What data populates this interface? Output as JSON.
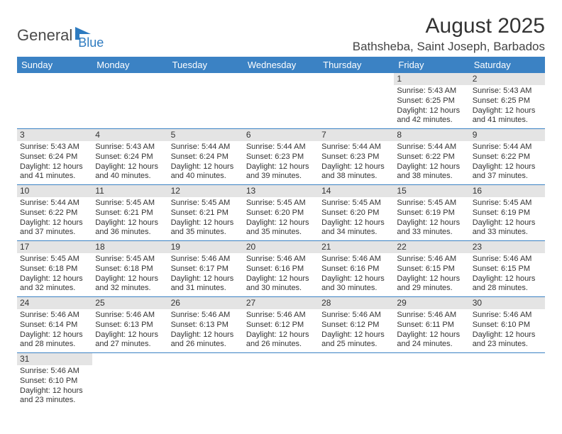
{
  "logo": {
    "textA": "General",
    "textB": "Blue"
  },
  "title": "August 2025",
  "location": "Bathsheba, Saint Joseph, Barbados",
  "colors": {
    "header_bg": "#3b82c4",
    "header_text": "#ffffff",
    "daynum_bg": "#e4e4e4",
    "border": "#3b82c4",
    "logo_gray": "#4a4a4a",
    "logo_blue": "#2e7bc0"
  },
  "weekdays": [
    "Sunday",
    "Monday",
    "Tuesday",
    "Wednesday",
    "Thursday",
    "Friday",
    "Saturday"
  ],
  "weeks": [
    [
      null,
      null,
      null,
      null,
      null,
      {
        "n": "1",
        "sr": "Sunrise: 5:43 AM",
        "ss": "Sunset: 6:25 PM",
        "d1": "Daylight: 12 hours",
        "d2": "and 42 minutes."
      },
      {
        "n": "2",
        "sr": "Sunrise: 5:43 AM",
        "ss": "Sunset: 6:25 PM",
        "d1": "Daylight: 12 hours",
        "d2": "and 41 minutes."
      }
    ],
    [
      {
        "n": "3",
        "sr": "Sunrise: 5:43 AM",
        "ss": "Sunset: 6:24 PM",
        "d1": "Daylight: 12 hours",
        "d2": "and 41 minutes."
      },
      {
        "n": "4",
        "sr": "Sunrise: 5:43 AM",
        "ss": "Sunset: 6:24 PM",
        "d1": "Daylight: 12 hours",
        "d2": "and 40 minutes."
      },
      {
        "n": "5",
        "sr": "Sunrise: 5:44 AM",
        "ss": "Sunset: 6:24 PM",
        "d1": "Daylight: 12 hours",
        "d2": "and 40 minutes."
      },
      {
        "n": "6",
        "sr": "Sunrise: 5:44 AM",
        "ss": "Sunset: 6:23 PM",
        "d1": "Daylight: 12 hours",
        "d2": "and 39 minutes."
      },
      {
        "n": "7",
        "sr": "Sunrise: 5:44 AM",
        "ss": "Sunset: 6:23 PM",
        "d1": "Daylight: 12 hours",
        "d2": "and 38 minutes."
      },
      {
        "n": "8",
        "sr": "Sunrise: 5:44 AM",
        "ss": "Sunset: 6:22 PM",
        "d1": "Daylight: 12 hours",
        "d2": "and 38 minutes."
      },
      {
        "n": "9",
        "sr": "Sunrise: 5:44 AM",
        "ss": "Sunset: 6:22 PM",
        "d1": "Daylight: 12 hours",
        "d2": "and 37 minutes."
      }
    ],
    [
      {
        "n": "10",
        "sr": "Sunrise: 5:44 AM",
        "ss": "Sunset: 6:22 PM",
        "d1": "Daylight: 12 hours",
        "d2": "and 37 minutes."
      },
      {
        "n": "11",
        "sr": "Sunrise: 5:45 AM",
        "ss": "Sunset: 6:21 PM",
        "d1": "Daylight: 12 hours",
        "d2": "and 36 minutes."
      },
      {
        "n": "12",
        "sr": "Sunrise: 5:45 AM",
        "ss": "Sunset: 6:21 PM",
        "d1": "Daylight: 12 hours",
        "d2": "and 35 minutes."
      },
      {
        "n": "13",
        "sr": "Sunrise: 5:45 AM",
        "ss": "Sunset: 6:20 PM",
        "d1": "Daylight: 12 hours",
        "d2": "and 35 minutes."
      },
      {
        "n": "14",
        "sr": "Sunrise: 5:45 AM",
        "ss": "Sunset: 6:20 PM",
        "d1": "Daylight: 12 hours",
        "d2": "and 34 minutes."
      },
      {
        "n": "15",
        "sr": "Sunrise: 5:45 AM",
        "ss": "Sunset: 6:19 PM",
        "d1": "Daylight: 12 hours",
        "d2": "and 33 minutes."
      },
      {
        "n": "16",
        "sr": "Sunrise: 5:45 AM",
        "ss": "Sunset: 6:19 PM",
        "d1": "Daylight: 12 hours",
        "d2": "and 33 minutes."
      }
    ],
    [
      {
        "n": "17",
        "sr": "Sunrise: 5:45 AM",
        "ss": "Sunset: 6:18 PM",
        "d1": "Daylight: 12 hours",
        "d2": "and 32 minutes."
      },
      {
        "n": "18",
        "sr": "Sunrise: 5:45 AM",
        "ss": "Sunset: 6:18 PM",
        "d1": "Daylight: 12 hours",
        "d2": "and 32 minutes."
      },
      {
        "n": "19",
        "sr": "Sunrise: 5:46 AM",
        "ss": "Sunset: 6:17 PM",
        "d1": "Daylight: 12 hours",
        "d2": "and 31 minutes."
      },
      {
        "n": "20",
        "sr": "Sunrise: 5:46 AM",
        "ss": "Sunset: 6:16 PM",
        "d1": "Daylight: 12 hours",
        "d2": "and 30 minutes."
      },
      {
        "n": "21",
        "sr": "Sunrise: 5:46 AM",
        "ss": "Sunset: 6:16 PM",
        "d1": "Daylight: 12 hours",
        "d2": "and 30 minutes."
      },
      {
        "n": "22",
        "sr": "Sunrise: 5:46 AM",
        "ss": "Sunset: 6:15 PM",
        "d1": "Daylight: 12 hours",
        "d2": "and 29 minutes."
      },
      {
        "n": "23",
        "sr": "Sunrise: 5:46 AM",
        "ss": "Sunset: 6:15 PM",
        "d1": "Daylight: 12 hours",
        "d2": "and 28 minutes."
      }
    ],
    [
      {
        "n": "24",
        "sr": "Sunrise: 5:46 AM",
        "ss": "Sunset: 6:14 PM",
        "d1": "Daylight: 12 hours",
        "d2": "and 28 minutes."
      },
      {
        "n": "25",
        "sr": "Sunrise: 5:46 AM",
        "ss": "Sunset: 6:13 PM",
        "d1": "Daylight: 12 hours",
        "d2": "and 27 minutes."
      },
      {
        "n": "26",
        "sr": "Sunrise: 5:46 AM",
        "ss": "Sunset: 6:13 PM",
        "d1": "Daylight: 12 hours",
        "d2": "and 26 minutes."
      },
      {
        "n": "27",
        "sr": "Sunrise: 5:46 AM",
        "ss": "Sunset: 6:12 PM",
        "d1": "Daylight: 12 hours",
        "d2": "and 26 minutes."
      },
      {
        "n": "28",
        "sr": "Sunrise: 5:46 AM",
        "ss": "Sunset: 6:12 PM",
        "d1": "Daylight: 12 hours",
        "d2": "and 25 minutes."
      },
      {
        "n": "29",
        "sr": "Sunrise: 5:46 AM",
        "ss": "Sunset: 6:11 PM",
        "d1": "Daylight: 12 hours",
        "d2": "and 24 minutes."
      },
      {
        "n": "30",
        "sr": "Sunrise: 5:46 AM",
        "ss": "Sunset: 6:10 PM",
        "d1": "Daylight: 12 hours",
        "d2": "and 23 minutes."
      }
    ],
    [
      {
        "n": "31",
        "sr": "Sunrise: 5:46 AM",
        "ss": "Sunset: 6:10 PM",
        "d1": "Daylight: 12 hours",
        "d2": "and 23 minutes."
      },
      null,
      null,
      null,
      null,
      null,
      null
    ]
  ]
}
